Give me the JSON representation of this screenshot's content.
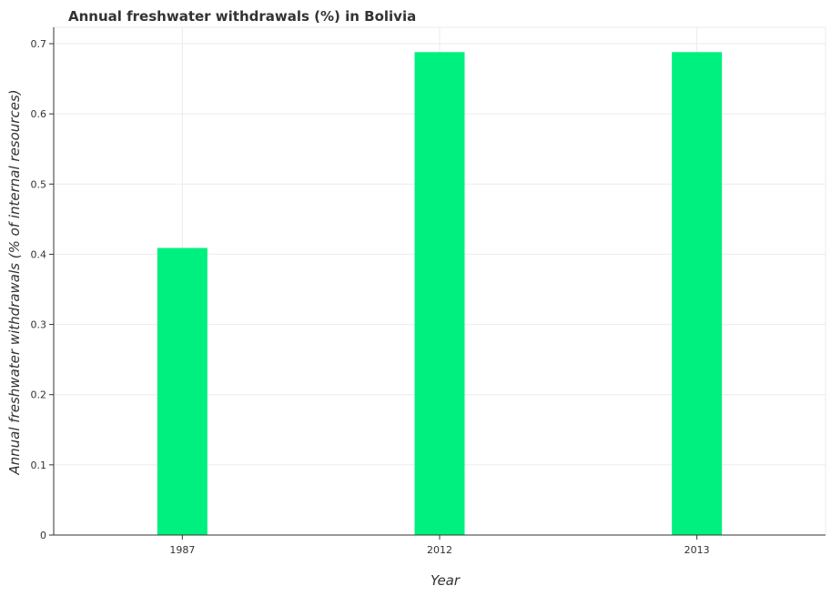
{
  "chart_data": {
    "type": "bar",
    "title": "Annual freshwater withdrawals (%) in Bolivia",
    "xlabel": "Year",
    "ylabel": "Annual freshwater withdrawals (% of internal resources)",
    "categories": [
      "1987",
      "2012",
      "2013"
    ],
    "values": [
      0.409,
      0.688,
      0.688
    ],
    "ylim": [
      0,
      0.7
    ],
    "yticks": [
      "0",
      "0.1",
      "0.2",
      "0.3",
      "0.4",
      "0.5",
      "0.6",
      "0.7"
    ],
    "grid": true,
    "bar_color": "#00f080"
  }
}
